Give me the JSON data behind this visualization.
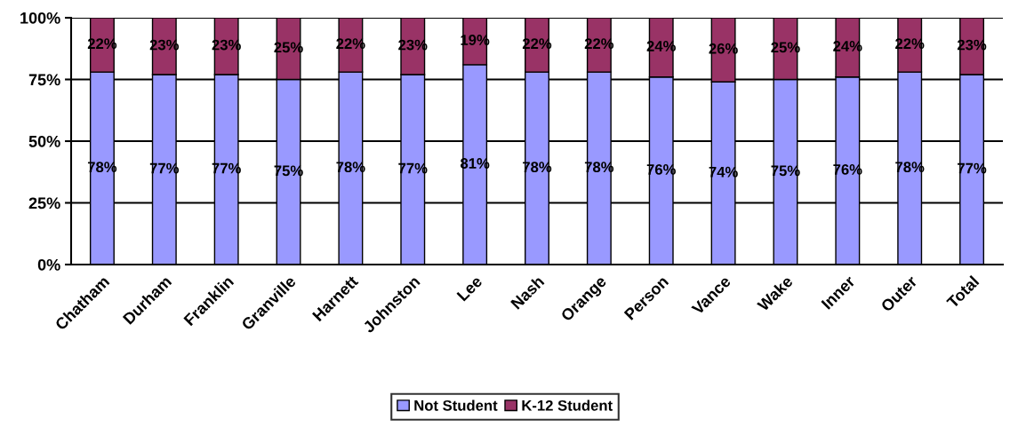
{
  "chart_data": {
    "type": "bar",
    "stacked": true,
    "categories": [
      "Chatham",
      "Durham",
      "Franklin",
      "Granville",
      "Harnett",
      "Johnston",
      "Lee",
      "Nash",
      "Orange",
      "Person",
      "Vance",
      "Wake",
      "Inner",
      "Outer",
      "Total"
    ],
    "series": [
      {
        "name": "Not Student",
        "color": "#9999ff",
        "values": [
          78,
          77,
          77,
          75,
          78,
          77,
          81,
          78,
          78,
          76,
          74,
          75,
          76,
          78,
          77
        ],
        "value_labels": [
          "78%",
          "77%",
          "77%",
          "75%",
          "78%",
          "77%",
          "81%",
          "78%",
          "78%",
          "76%",
          "74%",
          "75%",
          "76%",
          "78%",
          "77%"
        ]
      },
      {
        "name": "K-12 Student",
        "color": "#993366",
        "values": [
          22,
          23,
          23,
          25,
          22,
          23,
          19,
          22,
          22,
          24,
          26,
          25,
          24,
          22,
          23
        ],
        "value_labels": [
          "22%",
          "23%",
          "23%",
          "25%",
          "22%",
          "23%",
          "19%",
          "22%",
          "22%",
          "24%",
          "26%",
          "25%",
          "24%",
          "22%",
          "23%"
        ]
      }
    ],
    "ylim": [
      0,
      100
    ],
    "yticks": [
      {
        "value": 0,
        "label": "0%"
      },
      {
        "value": 25,
        "label": "25%"
      },
      {
        "value": 50,
        "label": "50%"
      },
      {
        "value": 75,
        "label": "75%"
      },
      {
        "value": 100,
        "label": "100%"
      }
    ],
    "grid": "y",
    "legend": "bottom"
  }
}
